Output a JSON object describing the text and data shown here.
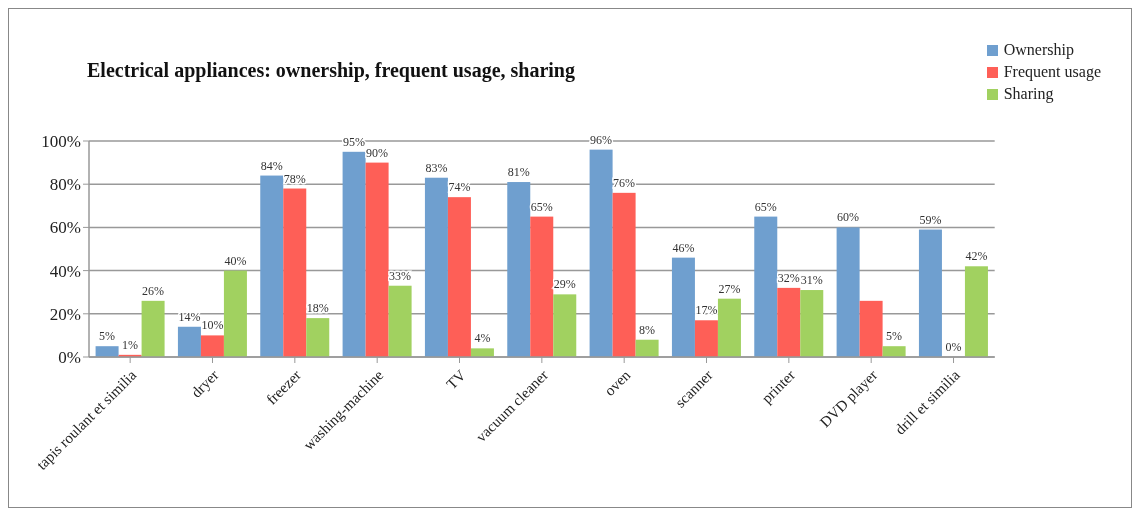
{
  "chart_data": {
    "type": "bar",
    "title": "Electrical appliances: ownership, frequent usage, sharing",
    "categories": [
      "tapis roulant et similia",
      "dryer",
      "freezer",
      "washing-machine",
      "TV",
      "vacuum cleaner",
      "oven",
      "scanner",
      "printer",
      "DVD player",
      "drill et similia"
    ],
    "series": [
      {
        "name": "Ownership",
        "color": "#6f9fcf",
        "values": [
          5,
          14,
          84,
          95,
          83,
          81,
          96,
          46,
          65,
          60,
          59
        ],
        "value_labels": [
          "5%",
          "14%",
          "84%",
          "95%",
          "83%",
          "81%",
          "96%",
          "46%",
          "65%",
          "60%",
          "59%"
        ]
      },
      {
        "name": "Frequent usage",
        "color": "#fe5f57",
        "values": [
          1,
          10,
          78,
          90,
          74,
          65,
          76,
          17,
          32,
          26,
          0
        ],
        "value_labels": [
          "1%",
          "10%",
          "78%",
          "90%",
          "74%",
          "65%",
          "76%",
          "17%",
          "32%",
          null,
          "0%"
        ]
      },
      {
        "name": "Sharing",
        "color": "#a1d160",
        "values": [
          26,
          40,
          18,
          33,
          4,
          29,
          8,
          27,
          31,
          5,
          42
        ],
        "value_labels": [
          "26%",
          "40%",
          "18%",
          "33%",
          "4%",
          "29%",
          "8%",
          "27%",
          "31%",
          "5%",
          "42%"
        ]
      }
    ],
    "ylim": [
      0,
      100
    ],
    "yticks": [
      {
        "value": 0,
        "label": "0%"
      },
      {
        "value": 20,
        "label": "20%"
      },
      {
        "value": 40,
        "label": "40%"
      },
      {
        "value": 60,
        "label": "60%"
      },
      {
        "value": 80,
        "label": "80%"
      },
      {
        "value": 100,
        "label": "100%"
      }
    ],
    "grid": "y",
    "legend": "top right"
  }
}
